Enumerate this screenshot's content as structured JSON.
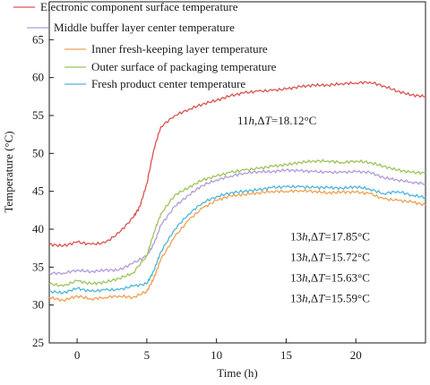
{
  "chart_data": {
    "type": "line",
    "xlabel": "Time (h)",
    "ylabel": "Temperature (°C)",
    "xlim": [
      -2,
      25
    ],
    "ylim": [
      25,
      70
    ],
    "x_ticks": [
      0,
      5,
      10,
      15,
      20
    ],
    "x_tick_labels": [
      "0",
      "5",
      "10",
      "15",
      "20"
    ],
    "y_ticks": [
      25,
      30,
      35,
      40,
      45,
      50,
      55,
      60,
      65
    ],
    "y_tick_labels": [
      "25",
      "30",
      "35",
      "40",
      "45",
      "50",
      "55",
      "60",
      "65"
    ],
    "grid": false,
    "legend_position": "top",
    "series": [
      {
        "name": "Electronic component surface temperature",
        "color": "#d9534f",
        "x": [
          -2,
          -1,
          0,
          1,
          2,
          3,
          4,
          4.5,
          5,
          5.5,
          6,
          7,
          8,
          9,
          10,
          11,
          12,
          13,
          14,
          15,
          16,
          17,
          18,
          19,
          20,
          21,
          22,
          23,
          24,
          25
        ],
        "y": [
          38,
          37.8,
          38.3,
          38.0,
          38.2,
          39.5,
          41.5,
          43,
          46,
          50.5,
          53.5,
          55,
          55.8,
          56.5,
          57,
          57.6,
          58,
          58.2,
          58.3,
          58.5,
          58.8,
          59.0,
          59.0,
          59.2,
          59.3,
          59.4,
          58.9,
          58.2,
          57.7,
          57.5
        ]
      },
      {
        "name": "Middle buffer layer center temperature",
        "color": "#b19cd9",
        "x": [
          -2,
          -1,
          0,
          1,
          2,
          3,
          4,
          5,
          5.5,
          6,
          7,
          8,
          9,
          10,
          11,
          12,
          13,
          14,
          15,
          16,
          17,
          18,
          19,
          20,
          21,
          22,
          23,
          24,
          25
        ],
        "y": [
          34.2,
          34.2,
          34.6,
          34.4,
          34.6,
          34.6,
          35.5,
          36.5,
          38,
          40.5,
          43,
          44.5,
          45.8,
          46.5,
          47.0,
          47.4,
          47.6,
          47.6,
          47.8,
          47.7,
          47.6,
          47.5,
          47.5,
          47.6,
          47.5,
          46.8,
          46.5,
          46.2,
          46.0
        ]
      },
      {
        "name": "Inner fresh-keeping layer temperature",
        "color": "#f0a050",
        "x": [
          -2,
          -1,
          0,
          1,
          2,
          3,
          4,
          5,
          5.5,
          6,
          7,
          8,
          9,
          10,
          11,
          12,
          13,
          14,
          15,
          16,
          17,
          18,
          19,
          20,
          21,
          22,
          23,
          24,
          25
        ],
        "y": [
          31.0,
          30.6,
          31.2,
          30.8,
          31.0,
          31.2,
          31.0,
          31.8,
          33.5,
          36,
          39,
          41.2,
          42.8,
          43.8,
          44.4,
          44.6,
          44.8,
          45.0,
          45.0,
          45.1,
          45.0,
          44.8,
          44.9,
          44.9,
          44.7,
          44.0,
          43.8,
          43.6,
          43.2
        ]
      },
      {
        "name": "Outer surface of packaging temperature",
        "color": "#9cc45a",
        "x": [
          -2,
          -1,
          0,
          1,
          2,
          3,
          4,
          5,
          5.5,
          6,
          7,
          8,
          9,
          10,
          11,
          12,
          13,
          14,
          15,
          16,
          17,
          18,
          19,
          20,
          21,
          22,
          23,
          24,
          25
        ],
        "y": [
          32.8,
          32.5,
          33.2,
          32.8,
          33.0,
          33.5,
          34.2,
          36.5,
          39.5,
          42,
          44.5,
          45.5,
          46.5,
          47.0,
          47.5,
          47.8,
          48.0,
          48.3,
          48.5,
          48.8,
          49.0,
          49.0,
          48.8,
          49.0,
          48.8,
          48.3,
          47.8,
          47.5,
          47.4
        ]
      },
      {
        "name": "Fresh product center temperature",
        "color": "#4db6d6",
        "x": [
          -2,
          -1,
          0,
          1,
          2,
          3,
          4,
          5,
          5.5,
          6,
          7,
          8,
          9,
          10,
          11,
          12,
          13,
          14,
          15,
          16,
          17,
          18,
          19,
          20,
          21,
          22,
          23,
          24,
          25
        ],
        "y": [
          31.8,
          31.6,
          32.2,
          31.8,
          32.0,
          32.0,
          32.5,
          32.8,
          34.5,
          37,
          40,
          42,
          43.5,
          44.3,
          44.8,
          45.0,
          45.2,
          45.5,
          45.6,
          45.6,
          45.5,
          45.5,
          45.4,
          45.6,
          45.3,
          44.7,
          45.0,
          44.5,
          44.2
        ]
      }
    ],
    "annotations": [
      {
        "text": "11h,ΔT=18.12°C",
        "x": 11.5,
        "y": 53.8
      },
      {
        "text": "13h,ΔT=17.85°C",
        "x": 15.3,
        "y": 38.5
      },
      {
        "text": "13h,ΔT=15.72°C",
        "x": 15.3,
        "y": 35.8
      },
      {
        "text": "13h,ΔT=15.63°C",
        "x": 15.3,
        "y": 33.1
      },
      {
        "text": "13h,ΔT=15.59°C",
        "x": 15.3,
        "y": 30.4
      }
    ]
  }
}
